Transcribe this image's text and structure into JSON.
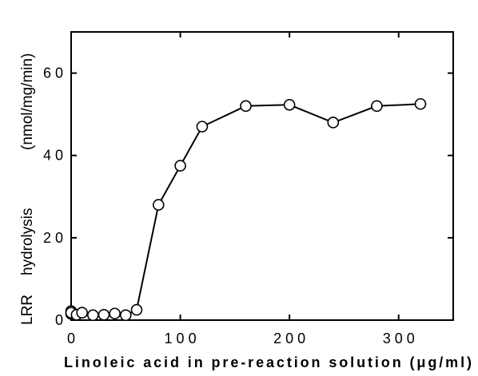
{
  "chart_data": {
    "type": "line",
    "xlabel": "Linoleic acid in pre-reaction solution (μg/ml)",
    "ylabel_parts": [
      "LRR",
      "hydrolysis",
      "(nmol/mg/min)"
    ],
    "xlim": [
      0,
      350
    ],
    "ylim": [
      0,
      70
    ],
    "x_ticks": [
      0,
      100,
      200,
      300
    ],
    "x_tick_labels": [
      "0",
      "1 0 0",
      "2 0 0",
      "3 0 0"
    ],
    "y_ticks": [
      0,
      20,
      40,
      60
    ],
    "y_tick_labels": [
      "0",
      "2 0",
      "4 0",
      "6 0"
    ],
    "marker": "open-circle",
    "series": [
      {
        "x": [
          0,
          0,
          0,
          5,
          10,
          20,
          30,
          40,
          50,
          60,
          80,
          100,
          120,
          160,
          200,
          240,
          280,
          320
        ],
        "y": [
          1.5,
          2.2,
          1.8,
          1.3,
          1.8,
          1.2,
          1.3,
          1.6,
          1.2,
          2.5,
          28,
          37.5,
          47,
          52,
          52.3,
          48,
          52,
          52.5
        ]
      }
    ],
    "grid": false
  }
}
